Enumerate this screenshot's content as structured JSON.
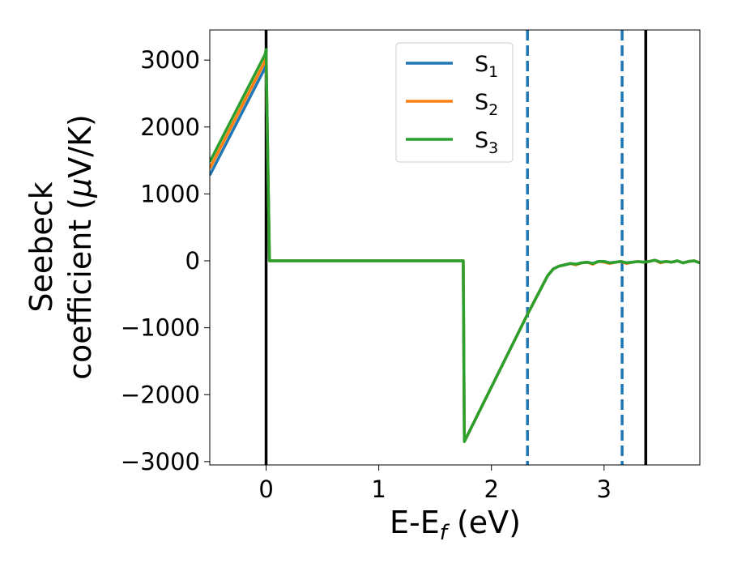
{
  "chart_data": {
    "type": "line",
    "xlabel": {
      "main": "E-E",
      "sub": "f",
      "tail": " (eV)"
    },
    "ylabel": {
      "line1": "Seebeck",
      "line2_pre": "coefficient  (",
      "mu": "μ",
      "line2_post": "V/K)"
    },
    "xlim": [
      -0.5,
      3.85
    ],
    "ylim": [
      -3050,
      3450
    ],
    "xticks": [
      0,
      1,
      2,
      3
    ],
    "xtick_labels": [
      "0",
      "1",
      "2",
      "3"
    ],
    "yticks": [
      -3000,
      -2000,
      -1000,
      0,
      1000,
      2000,
      3000
    ],
    "ytick_labels": [
      "−3000",
      "−2000",
      "−1000",
      "0",
      "1000",
      "2000",
      "3000"
    ],
    "grid": false,
    "legend_position": "top-center",
    "vlines": [
      {
        "x": 0.0,
        "style": "solid",
        "color": "#000000"
      },
      {
        "x": 3.37,
        "style": "solid",
        "color": "#000000"
      },
      {
        "x": 2.32,
        "style": "dashed",
        "color": "#1f77b4"
      },
      {
        "x": 3.16,
        "style": "dashed",
        "color": "#1f77b4"
      }
    ],
    "series": [
      {
        "name": "S",
        "sub": "1",
        "color": "#1f77b4",
        "x": [
          -0.5,
          -0.01,
          0.0,
          0.03,
          1.75,
          1.76,
          2.32,
          2.5,
          2.55,
          2.6,
          2.65,
          2.7,
          2.75,
          2.8,
          2.85,
          2.9,
          2.95,
          3.0,
          3.05,
          3.1,
          3.15,
          3.2,
          3.25,
          3.3,
          3.35,
          3.4,
          3.45,
          3.5,
          3.55,
          3.6,
          3.65,
          3.7,
          3.75,
          3.8,
          3.85
        ],
        "y": [
          1280,
          2880,
          2960,
          0,
          0,
          -2700,
          -800,
          -220,
          -120,
          -80,
          -60,
          -40,
          -50,
          -30,
          -20,
          -40,
          -10,
          -10,
          -30,
          -20,
          -10,
          -30,
          -20,
          -10,
          -20,
          -10,
          10,
          -20,
          -10,
          -20,
          0,
          -30,
          -10,
          0,
          -30
        ]
      },
      {
        "name": "S",
        "sub": "2",
        "color": "#ff7f0e",
        "x": [
          -0.5,
          -0.01,
          0.0,
          0.03,
          1.75,
          1.76,
          2.32,
          2.5,
          2.55,
          2.6,
          2.65,
          2.7,
          2.75,
          2.8,
          2.85,
          2.9,
          2.95,
          3.0,
          3.05,
          3.1,
          3.15,
          3.2,
          3.25,
          3.3,
          3.35,
          3.4,
          3.45,
          3.5,
          3.55,
          3.6,
          3.65,
          3.7,
          3.75,
          3.8,
          3.85
        ],
        "y": [
          1380,
          2980,
          3060,
          0,
          0,
          -2700,
          -800,
          -220,
          -120,
          -80,
          -60,
          -40,
          -60,
          -30,
          -20,
          -50,
          -10,
          -20,
          -40,
          -20,
          -10,
          -40,
          -20,
          -10,
          -20,
          -10,
          10,
          -30,
          -10,
          -20,
          0,
          -30,
          -10,
          0,
          -30
        ]
      },
      {
        "name": "S",
        "sub": "3",
        "color": "#2ca02c",
        "x": [
          -0.5,
          -0.01,
          0.0,
          0.03,
          1.75,
          1.76,
          2.32,
          2.5,
          2.55,
          2.6,
          2.65,
          2.7,
          2.75,
          2.8,
          2.85,
          2.9,
          2.95,
          3.0,
          3.05,
          3.1,
          3.15,
          3.2,
          3.25,
          3.3,
          3.35,
          3.4,
          3.45,
          3.5,
          3.55,
          3.6,
          3.65,
          3.7,
          3.75,
          3.8,
          3.85
        ],
        "y": [
          1480,
          3080,
          3160,
          0,
          0,
          -2700,
          -800,
          -220,
          -120,
          -80,
          -60,
          -40,
          -50,
          -30,
          -20,
          -40,
          -10,
          -10,
          -30,
          -20,
          -10,
          -30,
          -20,
          -10,
          -20,
          -10,
          10,
          -20,
          -10,
          -20,
          0,
          -30,
          -10,
          0,
          -30
        ]
      }
    ]
  }
}
